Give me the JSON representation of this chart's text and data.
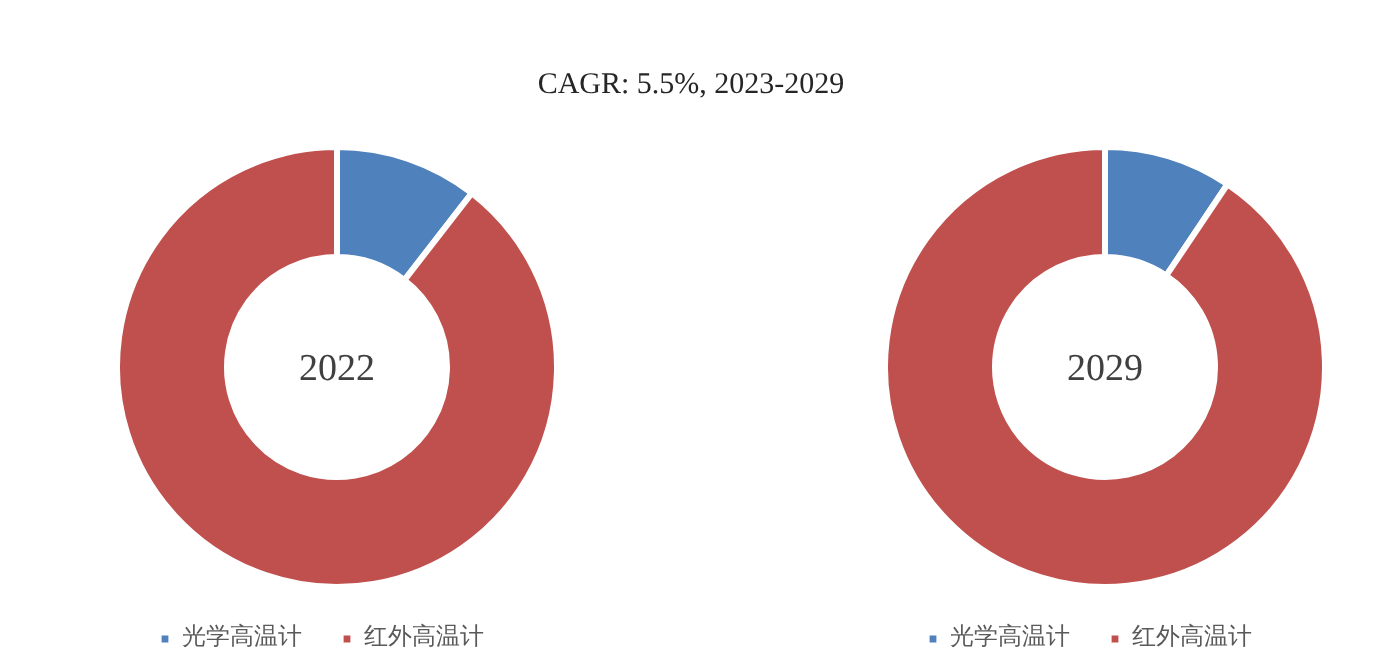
{
  "chart_data": [
    {
      "type": "donut",
      "title": "2022",
      "annotations": [
        "CAGR: 5.5%, 2023-2029"
      ],
      "categories": [
        "光学高温计",
        "红外高温计"
      ],
      "values": [
        10.5,
        89.5
      ],
      "colors": [
        "#4f81bd",
        "#c0504d"
      ],
      "legend": "bottom"
    },
    {
      "type": "donut",
      "title": "2029",
      "categories": [
        "光学高温计",
        "红外高温计"
      ],
      "values": [
        9.4,
        90.6
      ],
      "colors": [
        "#4f81bd",
        "#c0504d"
      ],
      "legend": "bottom"
    }
  ]
}
